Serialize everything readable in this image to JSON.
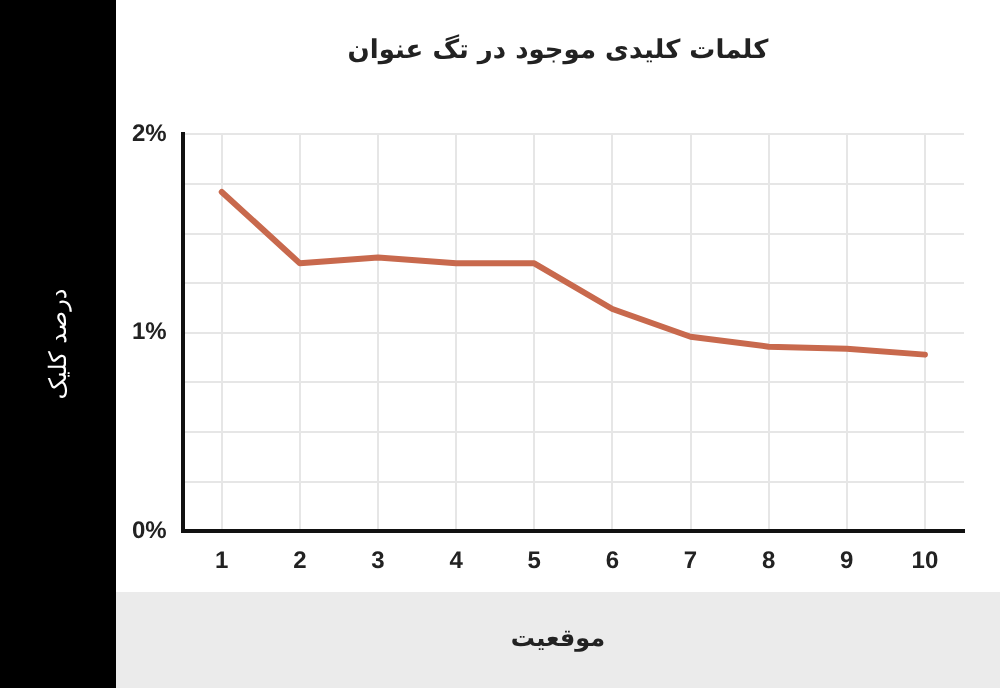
{
  "chart_data": {
    "type": "line",
    "title": "کلمات کلیدی موجود در تگ عنوان",
    "xlabel": "موقعیت",
    "ylabel": "درصد کلیک",
    "categories": [
      "1",
      "2",
      "3",
      "4",
      "5",
      "6",
      "7",
      "8",
      "9",
      "10"
    ],
    "series": [
      {
        "color": "#c8694d",
        "values": [
          1.71,
          1.35,
          1.38,
          1.35,
          1.35,
          1.12,
          0.98,
          0.93,
          0.92,
          0.89
        ]
      }
    ],
    "ylim": [
      0,
      2
    ],
    "yticks": [
      {
        "value": 0,
        "label": "0%"
      },
      {
        "value": 0.25,
        "label": null
      },
      {
        "value": 0.5,
        "label": null
      },
      {
        "value": 0.75,
        "label": null
      },
      {
        "value": 1,
        "label": "1%"
      },
      {
        "value": 1.25,
        "label": null
      },
      {
        "value": 1.5,
        "label": null
      },
      {
        "value": 1.75,
        "label": null
      },
      {
        "value": 2,
        "label": "2%"
      }
    ],
    "grid": true,
    "legend": false,
    "marker": "none",
    "line_style": "solid"
  }
}
